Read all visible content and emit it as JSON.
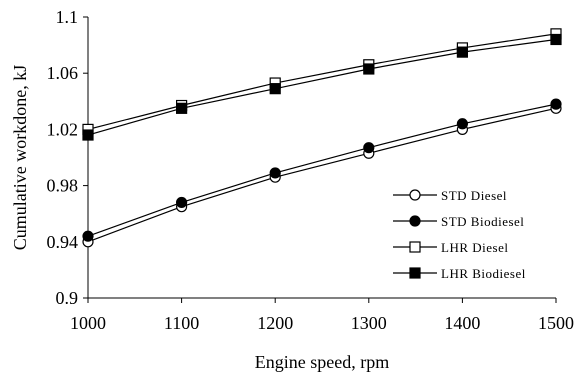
{
  "chart_data": {
    "type": "line",
    "title": "",
    "xlabel": "Engine speed, rpm",
    "ylabel": "Cumulative workdone, kJ",
    "x": [
      1000,
      1100,
      1200,
      1300,
      1400,
      1500
    ],
    "xlim": [
      1000,
      1500
    ],
    "ylim": [
      0.9,
      1.1
    ],
    "x_ticks": [
      "1000",
      "1100",
      "1200",
      "1300",
      "1400",
      "1500"
    ],
    "y_ticks": [
      "0.9",
      "0.94",
      "0.98",
      "1.02",
      "1.06",
      "1.1"
    ],
    "grid": false,
    "legend_position": "right",
    "series": [
      {
        "name": "STD Diesel",
        "marker": "circle-open",
        "color": "#000000",
        "values": [
          0.94,
          0.965,
          0.986,
          1.003,
          1.02,
          1.035
        ]
      },
      {
        "name": "STD Biodiesel",
        "marker": "circle-filled",
        "color": "#000000",
        "values": [
          0.944,
          0.968,
          0.989,
          1.007,
          1.024,
          1.038
        ]
      },
      {
        "name": "LHR Diesel",
        "marker": "square-open",
        "color": "#000000",
        "values": [
          1.02,
          1.037,
          1.053,
          1.066,
          1.078,
          1.088
        ]
      },
      {
        "name": "LHR Biodiesel",
        "marker": "square-filled",
        "color": "#000000",
        "values": [
          1.016,
          1.035,
          1.049,
          1.063,
          1.075,
          1.084
        ]
      }
    ]
  }
}
